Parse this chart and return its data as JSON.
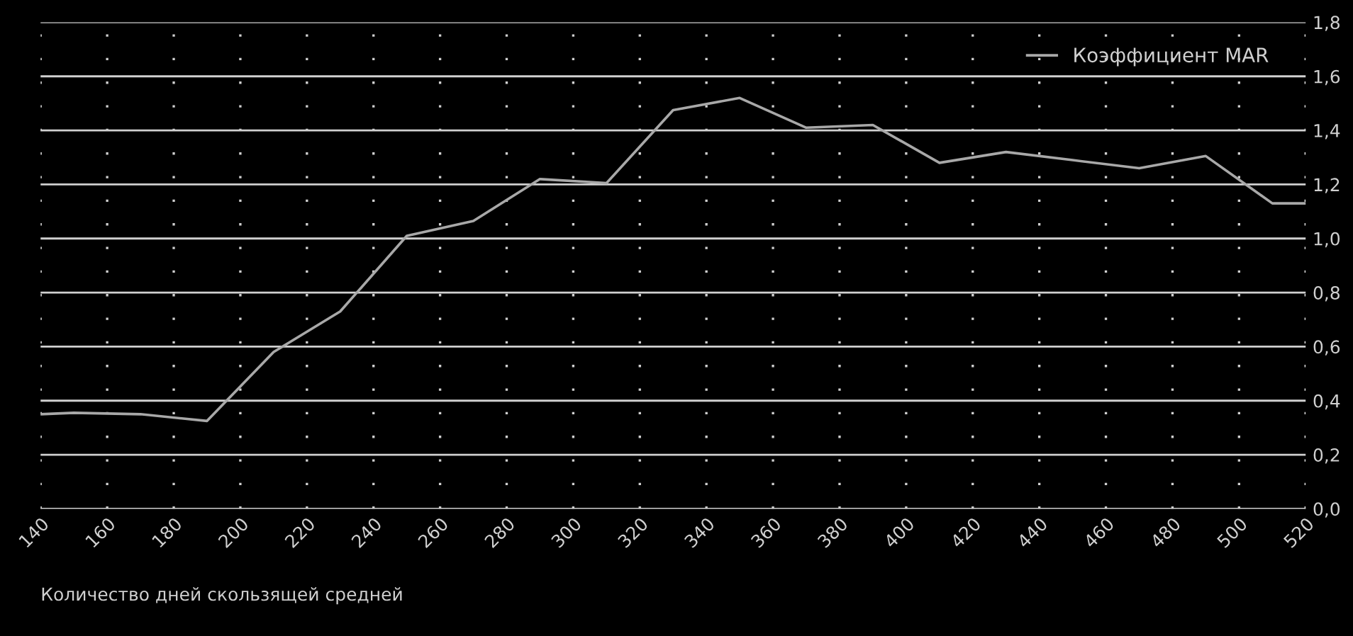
{
  "chart_data": {
    "type": "line",
    "xlabel": "Количество дней скользящей средней",
    "x": [
      140,
      150,
      170,
      190,
      210,
      230,
      250,
      270,
      290,
      310,
      330,
      350,
      370,
      390,
      410,
      430,
      450,
      470,
      490,
      510,
      520
    ],
    "series": [
      {
        "name": "Коэффициент MAR",
        "color": "#a8a8a8",
        "values": [
          0.35,
          0.355,
          0.35,
          0.325,
          0.58,
          0.73,
          1.01,
          1.065,
          1.22,
          1.205,
          1.475,
          1.52,
          1.41,
          1.42,
          1.28,
          1.32,
          1.29,
          1.26,
          1.305,
          1.13,
          1.13
        ]
      }
    ],
    "xlim": [
      140,
      520
    ],
    "xticks": [
      140,
      160,
      180,
      200,
      220,
      240,
      260,
      280,
      300,
      320,
      340,
      360,
      380,
      400,
      420,
      440,
      460,
      480,
      500,
      520
    ],
    "ylim": [
      0,
      1.8
    ],
    "yticks": [
      {
        "value": 0,
        "label": "0,0"
      },
      {
        "value": 0.2,
        "label": "0,2"
      },
      {
        "value": 0.4,
        "label": "0,4"
      },
      {
        "value": 0.6,
        "label": "0,6"
      },
      {
        "value": 0.8,
        "label": "0,8"
      },
      {
        "value": 1.0,
        "label": "1,0"
      },
      {
        "value": 1.2,
        "label": "1,2"
      },
      {
        "value": 1.4,
        "label": "1,4"
      },
      {
        "value": 1.6,
        "label": "1,6"
      },
      {
        "value": 1.8,
        "label": "1,8"
      }
    ],
    "grid": true,
    "legend": "top right",
    "marker": "none",
    "line_style": "solid"
  }
}
